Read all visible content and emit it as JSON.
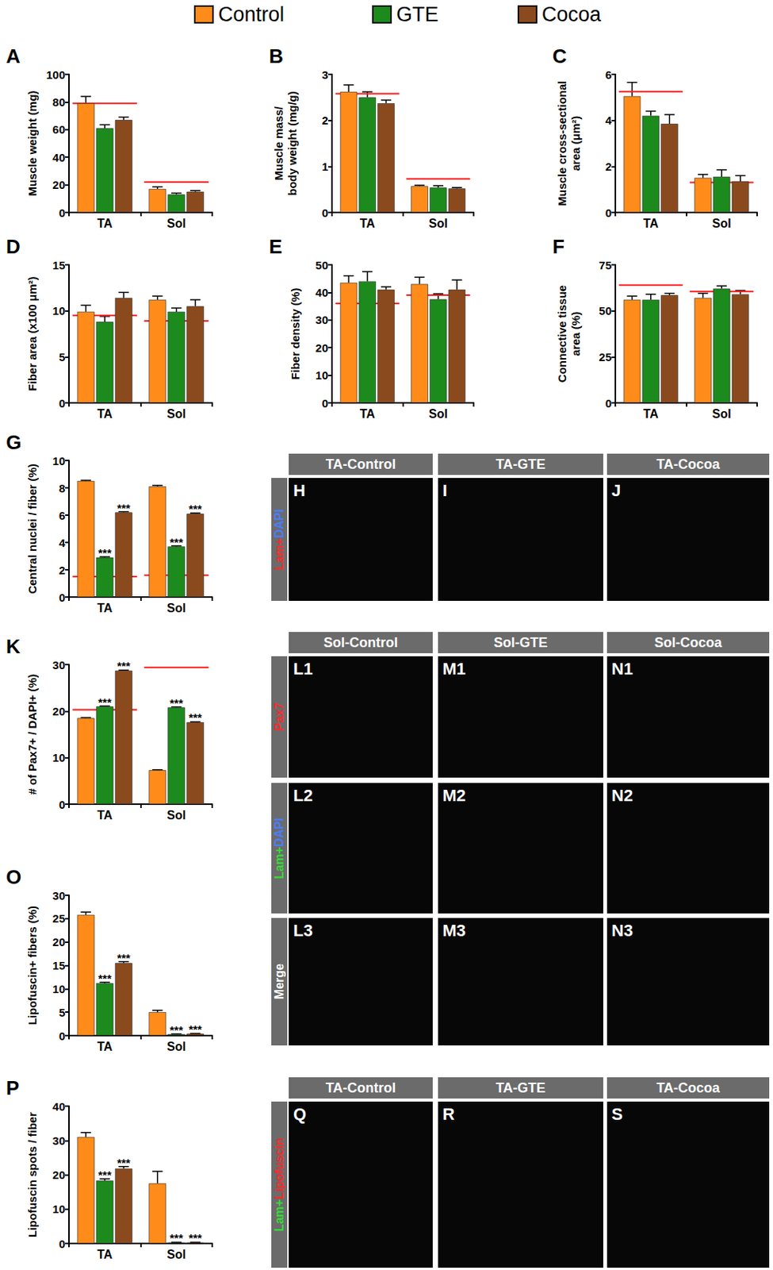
{
  "chart_data": [
    {
      "type": "bar",
      "panel": "A",
      "y_label": "Muscle weight (mg)",
      "categories": [
        "TA",
        "Sol"
      ],
      "ylim": [
        0,
        100
      ],
      "yticks": [
        0,
        20,
        40,
        60,
        80,
        100
      ],
      "grid": false,
      "series": [
        {
          "name": "Control",
          "color": "#ff8c1a",
          "values": [
            79,
            17
          ],
          "errors": [
            5,
            1.5
          ],
          "annotations": [
            null,
            null
          ]
        },
        {
          "name": "GTE",
          "color": "#1c8a1c",
          "values": [
            61,
            13
          ],
          "errors": [
            2.5,
            1
          ],
          "annotations": [
            null,
            null
          ]
        },
        {
          "name": "Cocoa",
          "color": "#8b4a1e",
          "values": [
            67,
            15
          ],
          "errors": [
            2,
            0.8
          ],
          "annotations": [
            null,
            null
          ]
        }
      ],
      "reference": {
        "color": "#ff1a1a",
        "values": [
          79,
          22
        ]
      }
    },
    {
      "type": "bar",
      "panel": "B",
      "y_label": "Muscle mass/\nbody weight (mg/g)",
      "categories": [
        "TA",
        "Sol"
      ],
      "ylim": [
        0,
        3
      ],
      "yticks": [
        0,
        1,
        2,
        3
      ],
      "grid": false,
      "series": [
        {
          "name": "Control",
          "color": "#ff8c1a",
          "values": [
            2.62,
            0.57
          ],
          "errors": [
            0.15,
            0.02
          ],
          "annotations": [
            null,
            null
          ]
        },
        {
          "name": "GTE",
          "color": "#1c8a1c",
          "values": [
            2.5,
            0.54
          ],
          "errors": [
            0.12,
            0.04
          ],
          "annotations": [
            null,
            null
          ]
        },
        {
          "name": "Cocoa",
          "color": "#8b4a1e",
          "values": [
            2.37,
            0.52
          ],
          "errors": [
            0.07,
            0.02
          ],
          "annotations": [
            null,
            null
          ]
        }
      ],
      "reference": {
        "color": "#ff1a1a",
        "values": [
          2.58,
          0.73
        ]
      }
    },
    {
      "type": "bar",
      "panel": "C",
      "y_label": "Muscle cross-sectional\narea (μm²)",
      "categories": [
        "TA",
        "Sol"
      ],
      "ylim": [
        0,
        6
      ],
      "yticks": [
        0,
        2,
        4,
        6
      ],
      "grid": false,
      "series": [
        {
          "name": "Control",
          "color": "#ff8c1a",
          "values": [
            5.05,
            1.5
          ],
          "errors": [
            0.6,
            0.15
          ],
          "annotations": [
            null,
            null
          ]
        },
        {
          "name": "GTE",
          "color": "#1c8a1c",
          "values": [
            4.2,
            1.55
          ],
          "errors": [
            0.2,
            0.3
          ],
          "annotations": [
            null,
            null
          ]
        },
        {
          "name": "Cocoa",
          "color": "#8b4a1e",
          "values": [
            3.85,
            1.35
          ],
          "errors": [
            0.4,
            0.25
          ],
          "annotations": [
            null,
            null
          ]
        }
      ],
      "reference": {
        "color": "#ff1a1a",
        "values": [
          5.25,
          1.3
        ]
      }
    },
    {
      "type": "bar",
      "panel": "D",
      "y_label": "Fiber area (x100 μm²)",
      "categories": [
        "TA",
        "Sol"
      ],
      "ylim": [
        0,
        15
      ],
      "yticks": [
        0,
        5,
        10,
        15
      ],
      "grid": false,
      "series": [
        {
          "name": "Control",
          "color": "#ff8c1a",
          "values": [
            9.9,
            11.2
          ],
          "errors": [
            0.7,
            0.4
          ],
          "annotations": [
            null,
            null
          ]
        },
        {
          "name": "GTE",
          "color": "#1c8a1c",
          "values": [
            8.8,
            9.9
          ],
          "errors": [
            0.6,
            0.4
          ],
          "annotations": [
            null,
            null
          ]
        },
        {
          "name": "Cocoa",
          "color": "#8b4a1e",
          "values": [
            11.4,
            10.5
          ],
          "errors": [
            0.6,
            0.7
          ],
          "annotations": [
            null,
            null
          ]
        }
      ],
      "reference": {
        "color": "#ff1a1a",
        "values": [
          9.5,
          8.9
        ]
      }
    },
    {
      "type": "bar",
      "panel": "E",
      "y_label": "Fiber density (%)",
      "categories": [
        "TA",
        "Sol"
      ],
      "ylim": [
        0,
        50
      ],
      "yticks": [
        0,
        10,
        20,
        30,
        40,
        50
      ],
      "grid": false,
      "series": [
        {
          "name": "Control",
          "color": "#ff8c1a",
          "values": [
            43.5,
            43
          ],
          "errors": [
            2.5,
            2.5
          ],
          "annotations": [
            null,
            null
          ]
        },
        {
          "name": "GTE",
          "color": "#1c8a1c",
          "values": [
            44,
            37.5
          ],
          "errors": [
            3.5,
            2
          ],
          "annotations": [
            null,
            null
          ]
        },
        {
          "name": "Cocoa",
          "color": "#8b4a1e",
          "values": [
            41,
            41
          ],
          "errors": [
            1,
            3.5
          ],
          "annotations": [
            null,
            null
          ]
        }
      ],
      "reference": {
        "color": "#ff1a1a",
        "values": [
          36,
          39
        ]
      }
    },
    {
      "type": "bar",
      "panel": "F",
      "y_label": "Connective tissue\narea (%)",
      "categories": [
        "TA",
        "Sol"
      ],
      "ylim": [
        0,
        75
      ],
      "yticks": [
        0,
        25,
        50,
        75
      ],
      "grid": false,
      "series": [
        {
          "name": "Control",
          "color": "#ff8c1a",
          "values": [
            56,
            57
          ],
          "errors": [
            2,
            2.5
          ],
          "annotations": [
            null,
            null
          ]
        },
        {
          "name": "GTE",
          "color": "#1c8a1c",
          "values": [
            56,
            62
          ],
          "errors": [
            3,
            1.5
          ],
          "annotations": [
            null,
            null
          ]
        },
        {
          "name": "Cocoa",
          "color": "#8b4a1e",
          "values": [
            58.5,
            59
          ],
          "errors": [
            1,
            2
          ],
          "annotations": [
            null,
            null
          ]
        }
      ],
      "reference": {
        "color": "#ff1a1a",
        "values": [
          64,
          60.5
        ]
      }
    },
    {
      "type": "bar",
      "panel": "G",
      "y_label": "Central nuclei / fiber (%)",
      "categories": [
        "TA",
        "Sol"
      ],
      "ylim": [
        0,
        10
      ],
      "yticks": [
        0,
        2,
        4,
        6,
        8,
        10
      ],
      "grid": false,
      "series": [
        {
          "name": "Control",
          "color": "#ff8c1a",
          "values": [
            8.5,
            8.1
          ],
          "errors": [
            0.05,
            0.08
          ],
          "annotations": [
            null,
            null
          ]
        },
        {
          "name": "GTE",
          "color": "#1c8a1c",
          "values": [
            2.9,
            3.7
          ],
          "errors": [
            0.05,
            0.05
          ],
          "annotations": [
            "***",
            "***"
          ]
        },
        {
          "name": "Cocoa",
          "color": "#8b4a1e",
          "values": [
            6.2,
            6.1
          ],
          "errors": [
            0.05,
            0.05
          ],
          "annotations": [
            "***",
            "***"
          ]
        }
      ],
      "reference": {
        "color": "#ff1a1a",
        "values": [
          1.5,
          1.6
        ]
      }
    },
    {
      "type": "bar",
      "panel": "K",
      "y_label": "# of Pax7+ / DAPI+ (%)",
      "categories": [
        "TA",
        "Sol"
      ],
      "ylim": [
        0,
        30
      ],
      "yticks": [
        0,
        10,
        20,
        30
      ],
      "grid": false,
      "series": [
        {
          "name": "Control",
          "color": "#ff8c1a",
          "values": [
            18.5,
            7.3
          ],
          "errors": [
            0.1,
            0.1
          ],
          "annotations": [
            null,
            null
          ]
        },
        {
          "name": "GTE",
          "color": "#1c8a1c",
          "values": [
            21,
            20.8
          ],
          "errors": [
            0.1,
            0.1
          ],
          "annotations": [
            "***",
            "***"
          ]
        },
        {
          "name": "Cocoa",
          "color": "#8b4a1e",
          "values": [
            28.7,
            17.6
          ],
          "errors": [
            0.1,
            0.1
          ],
          "annotations": [
            "***",
            "***"
          ]
        }
      ],
      "reference": {
        "color": "#ff1a1a",
        "values": [
          20.3,
          29.4
        ]
      }
    },
    {
      "type": "bar",
      "panel": "O",
      "y_label": "Lipofuscin+ fibers (%)",
      "categories": [
        "TA",
        "Sol"
      ],
      "ylim": [
        0,
        30
      ],
      "yticks": [
        0,
        5,
        10,
        15,
        20,
        25,
        30
      ],
      "grid": false,
      "series": [
        {
          "name": "Control",
          "color": "#ff8c1a",
          "values": [
            25.8,
            5
          ],
          "errors": [
            0.6,
            0.4
          ],
          "annotations": [
            null,
            null
          ]
        },
        {
          "name": "GTE",
          "color": "#1c8a1c",
          "values": [
            11.2,
            0.3
          ],
          "errors": [
            0.2,
            0.05
          ],
          "annotations": [
            "***",
            "***"
          ]
        },
        {
          "name": "Cocoa",
          "color": "#8b4a1e",
          "values": [
            15.5,
            0.4
          ],
          "errors": [
            0.3,
            0.05
          ],
          "annotations": [
            "***",
            "***"
          ]
        }
      ],
      "reference": {
        "color": "#ff1a1a",
        "values": [
          null,
          null
        ]
      }
    },
    {
      "type": "bar",
      "panel": "P",
      "y_label": "Lipofuscin spots / fiber",
      "categories": [
        "TA",
        "Sol"
      ],
      "ylim": [
        0,
        40
      ],
      "yticks": [
        0,
        10,
        20,
        30,
        40
      ],
      "grid": false,
      "series": [
        {
          "name": "Control",
          "color": "#ff8c1a",
          "values": [
            31,
            17.5
          ],
          "errors": [
            1.3,
            3.5
          ],
          "annotations": [
            null,
            null
          ]
        },
        {
          "name": "GTE",
          "color": "#1c8a1c",
          "values": [
            18.3,
            0.3
          ],
          "errors": [
            0.5,
            0.05
          ],
          "annotations": [
            "***",
            "***"
          ]
        },
        {
          "name": "Cocoa",
          "color": "#8b4a1e",
          "values": [
            21.8,
            0.3
          ],
          "errors": [
            0.6,
            0.05
          ],
          "annotations": [
            "***",
            "***"
          ]
        }
      ],
      "reference": {
        "color": "#ff1a1a",
        "values": [
          null,
          null
        ]
      }
    }
  ],
  "image_panels": [
    {
      "headers": [
        "TA-Control",
        "TA-GTE",
        "TA-Cocoa"
      ],
      "rows": [
        {
          "letters": [
            "H",
            "I",
            "J"
          ],
          "label": [
            {
              "text": "Lam",
              "color": "#ff2a2a"
            },
            {
              "text": "+",
              "color": "#ff2a2a"
            },
            {
              "text": "DAPI",
              "color": "#4a7dff"
            }
          ]
        }
      ]
    },
    {
      "headers": [
        "Sol-Control",
        "Sol-GTE",
        "Sol-Cocoa"
      ],
      "rows": [
        {
          "letters": [
            "L1",
            "M1",
            "N1"
          ],
          "label": [
            {
              "text": "Pax7",
              "color": "#ff2a2a"
            }
          ]
        },
        {
          "letters": [
            "L2",
            "M2",
            "N2"
          ],
          "label": [
            {
              "text": "Lam",
              "color": "#33dd33"
            },
            {
              "text": "+",
              "color": "#33dd33"
            },
            {
              "text": "DAPI",
              "color": "#4a7dff"
            }
          ]
        },
        {
          "letters": [
            "L3",
            "M3",
            "N3"
          ],
          "label": [
            {
              "text": "Merge",
              "color": "#ffffff"
            }
          ]
        }
      ]
    },
    {
      "headers": [
        "TA-Control",
        "TA-GTE",
        "TA-Cocoa"
      ],
      "rows": [
        {
          "letters": [
            "Q",
            "R",
            "S"
          ],
          "label": [
            {
              "text": "Lam",
              "color": "#33dd33"
            },
            {
              "text": "+",
              "color": "#33dd33"
            },
            {
              "text": "Lipofuscin",
              "color": "#ff2a2a"
            }
          ]
        }
      ]
    }
  ]
}
